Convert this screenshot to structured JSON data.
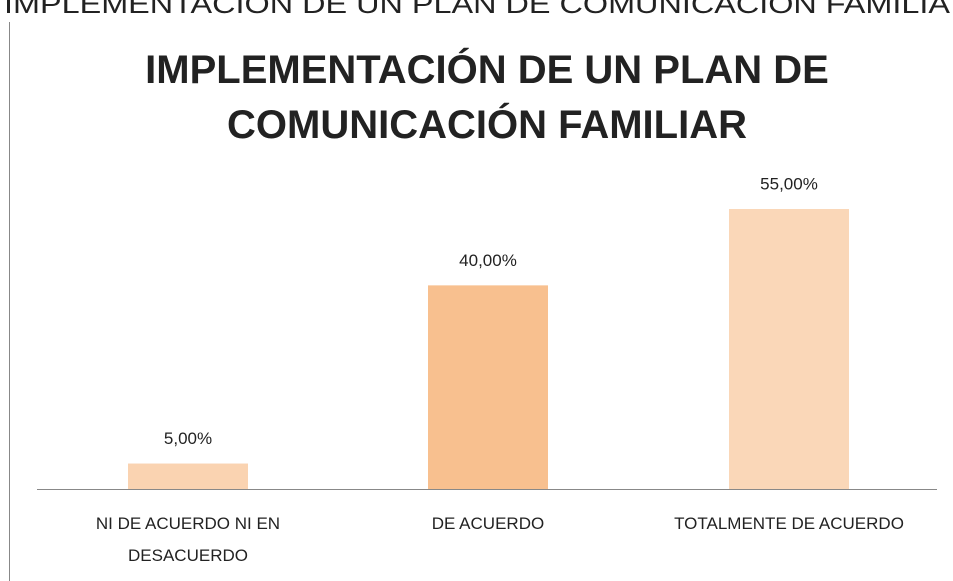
{
  "header_text": "IMPLEMENTACIÓN DE UN PLAN DE COMUNICACIÓN FAMILIA",
  "chart_data": {
    "type": "bar",
    "title": "IMPLEMENTACIÓN DE UN PLAN DE COMUNICACIÓN FAMILIAR",
    "categories": [
      "NI DE ACUERDO NI EN DESACUERDO",
      "DE ACUERDO",
      "TOTALMENTE DE ACUERDO"
    ],
    "values": [
      5,
      40,
      55
    ],
    "value_labels": [
      "5,00%",
      "40,00%",
      "55,00%"
    ],
    "colors": [
      "#fad3b1",
      "#f8c08f",
      "#fad7b8"
    ]
  }
}
